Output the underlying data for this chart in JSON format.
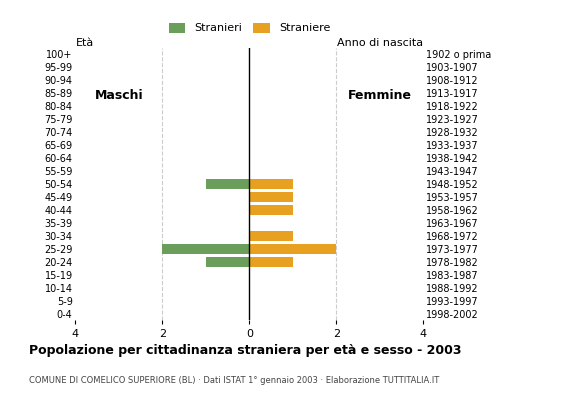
{
  "age_groups": [
    "100+",
    "95-99",
    "90-94",
    "85-89",
    "80-84",
    "75-79",
    "70-74",
    "65-69",
    "60-64",
    "55-59",
    "50-54",
    "45-49",
    "40-44",
    "35-39",
    "30-34",
    "25-29",
    "20-24",
    "15-19",
    "10-14",
    "5-9",
    "0-4"
  ],
  "birth_years": [
    "1902 o prima",
    "1903-1907",
    "1908-1912",
    "1913-1917",
    "1918-1922",
    "1923-1927",
    "1928-1932",
    "1933-1937",
    "1938-1942",
    "1943-1947",
    "1948-1952",
    "1953-1957",
    "1958-1962",
    "1963-1967",
    "1968-1972",
    "1973-1977",
    "1978-1982",
    "1983-1987",
    "1988-1992",
    "1993-1997",
    "1998-2002"
  ],
  "males": [
    0,
    0,
    0,
    0,
    0,
    0,
    0,
    0,
    0,
    0,
    1,
    0,
    0,
    0,
    0,
    2,
    1,
    0,
    0,
    0,
    0
  ],
  "females": [
    0,
    0,
    0,
    0,
    0,
    0,
    0,
    0,
    0,
    0,
    1,
    1,
    1,
    0,
    1,
    2,
    1,
    0,
    0,
    0,
    0
  ],
  "male_color": "#6a9e5a",
  "female_color": "#e8a020",
  "xlim": 4,
  "title": "Popolazione per cittadinanza straniera per età e sesso - 2003",
  "subtitle": "COMUNE DI COMELICO SUPERIORE (BL) · Dati ISTAT 1° gennaio 2003 · Elaborazione TUTTITALIA.IT",
  "legend_male": "Stranieri",
  "legend_female": "Straniere",
  "label_eta": "Età",
  "label_anno": "Anno di nascita",
  "label_maschi": "Maschi",
  "label_femmine": "Femmine",
  "background_color": "#ffffff",
  "grid_color": "#cccccc",
  "bar_height": 0.75
}
